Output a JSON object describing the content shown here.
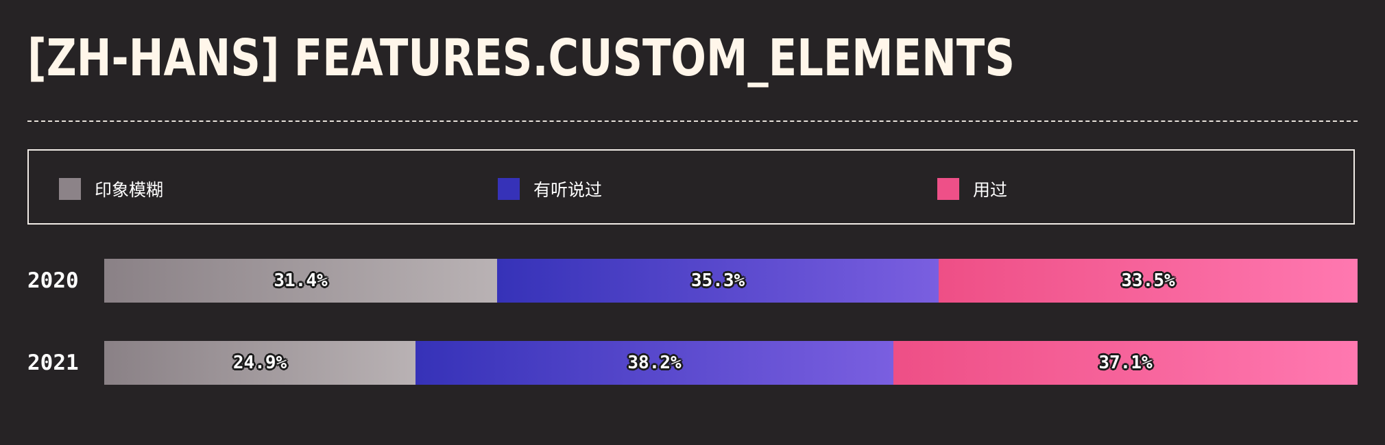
{
  "title": "[ZH-HANS] FEATURES.CUSTOM_ELEMENTS",
  "legend": [
    {
      "label": "印象模糊",
      "color": "#8c8388"
    },
    {
      "label": "有听说过",
      "color": "#3632b8"
    },
    {
      "label": "用过",
      "color": "#ee5088"
    }
  ],
  "chart_data": {
    "type": "bar",
    "orientation": "horizontal",
    "stacked": true,
    "normalized": true,
    "categories": [
      "2020",
      "2021"
    ],
    "series": [
      {
        "name": "印象模糊",
        "values": [
          31.4,
          24.9
        ],
        "labels": [
          "31.4%",
          "24.9%"
        ],
        "color_start": "#8a8186",
        "color_end": "#b9b2b4"
      },
      {
        "name": "有听说过",
        "values": [
          35.3,
          38.2
        ],
        "labels": [
          "35.3%",
          "38.2%"
        ],
        "color_start": "#3632b8",
        "color_end": "#7a5fe0"
      },
      {
        "name": "用过",
        "values": [
          33.5,
          37.1
        ],
        "labels": [
          "33.5%",
          "37.1%"
        ],
        "color_start": "#ee4f86",
        "color_end": "#ff78b0"
      }
    ],
    "legend_position": "top",
    "grid": false
  }
}
